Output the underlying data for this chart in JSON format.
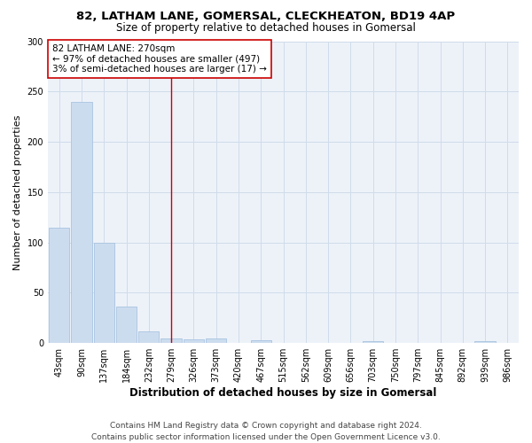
{
  "title1": "82, LATHAM LANE, GOMERSAL, CLECKHEATON, BD19 4AP",
  "title2": "Size of property relative to detached houses in Gomersal",
  "xlabel": "Distribution of detached houses by size in Gomersal",
  "ylabel": "Number of detached properties",
  "bar_labels": [
    "43sqm",
    "90sqm",
    "137sqm",
    "184sqm",
    "232sqm",
    "279sqm",
    "326sqm",
    "373sqm",
    "420sqm",
    "467sqm",
    "515sqm",
    "562sqm",
    "609sqm",
    "656sqm",
    "703sqm",
    "750sqm",
    "797sqm",
    "845sqm",
    "892sqm",
    "939sqm",
    "986sqm"
  ],
  "bar_values": [
    115,
    240,
    100,
    36,
    12,
    5,
    4,
    5,
    0,
    3,
    0,
    0,
    0,
    0,
    2,
    0,
    0,
    0,
    0,
    2,
    0
  ],
  "bar_color": "#ccdcef",
  "bar_edge_color": "#a8c4e0",
  "vline_x": 5.0,
  "vline_color": "#cc0000",
  "annotation_text": "82 LATHAM LANE: 270sqm\n← 97% of detached houses are smaller (497)\n3% of semi-detached houses are larger (17) →",
  "annotation_box_color": "#ffffff",
  "annotation_edge_color": "#cc0000",
  "ylim": [
    0,
    300
  ],
  "yticks": [
    0,
    50,
    100,
    150,
    200,
    250,
    300
  ],
  "grid_color": "#d0dcea",
  "background_color": "#edf2f9",
  "footnote": "Contains HM Land Registry data © Crown copyright and database right 2024.\nContains public sector information licensed under the Open Government Licence v3.0.",
  "title1_fontsize": 9.5,
  "title2_fontsize": 8.5,
  "xlabel_fontsize": 8.5,
  "ylabel_fontsize": 8,
  "tick_fontsize": 7,
  "annotation_fontsize": 7.5,
  "footnote_fontsize": 6.5
}
